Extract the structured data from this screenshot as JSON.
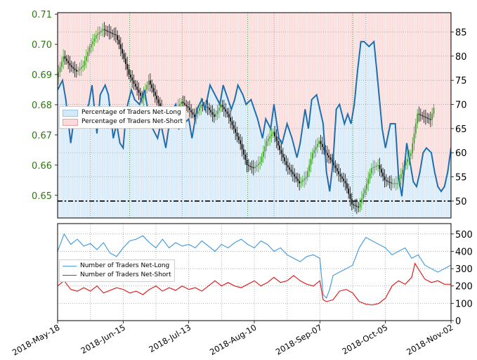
{
  "colors": {
    "price_axis": "#2a7a0a",
    "net_long_fill": "#d6e9f8",
    "net_short_fill": "#fbdada",
    "net_long_line": "#1f6fb0",
    "net_long_count_line": "#4a9fe0",
    "net_short_count_line": "#e02020",
    "candle_up": "#3aa020",
    "candle_down": "#000000",
    "gridline_month": "#2a9a2a",
    "gridline_minor": "#a0a0a0",
    "reference_line": "#000000"
  },
  "chart_data": [
    {
      "type": "candlestick_with_sentiment_overlay",
      "title": "",
      "left_axis": {
        "label": "",
        "ticks": [
          "0.65",
          "0.66",
          "0.67",
          "0.68",
          "0.69",
          "0.70",
          "0.71"
        ],
        "range": [
          0.6425,
          0.7105
        ]
      },
      "right_axis": {
        "label": "",
        "ticks": [
          "50",
          "55",
          "60",
          "65",
          "70",
          "75",
          "80",
          "85"
        ],
        "range": [
          46.5,
          89
        ]
      },
      "reference_line": 50,
      "legend": {
        "placement": "upper-left",
        "entries": [
          "Percentage of Traders Net-Long",
          "Percentage of Traders Net-Short"
        ]
      },
      "price_path": [
        [
          0,
          0.689
        ],
        [
          4,
          0.696
        ],
        [
          8,
          0.693
        ],
        [
          12,
          0.691
        ],
        [
          16,
          0.693
        ],
        [
          20,
          0.699
        ],
        [
          24,
          0.703
        ],
        [
          28,
          0.705
        ],
        [
          32,
          0.704
        ],
        [
          36,
          0.703
        ],
        [
          40,
          0.697
        ],
        [
          44,
          0.69
        ],
        [
          48,
          0.686
        ],
        [
          52,
          0.682
        ],
        [
          56,
          0.688
        ],
        [
          60,
          0.683
        ],
        [
          64,
          0.678
        ],
        [
          68,
          0.674
        ],
        [
          72,
          0.678
        ],
        [
          76,
          0.681
        ],
        [
          80,
          0.679
        ],
        [
          84,
          0.676
        ],
        [
          88,
          0.68
        ],
        [
          92,
          0.679
        ],
        [
          96,
          0.676
        ],
        [
          100,
          0.68
        ],
        [
          104,
          0.677
        ],
        [
          108,
          0.672
        ],
        [
          112,
          0.667
        ],
        [
          116,
          0.66
        ],
        [
          120,
          0.659
        ],
        [
          124,
          0.661
        ],
        [
          128,
          0.668
        ],
        [
          132,
          0.671
        ],
        [
          136,
          0.665
        ],
        [
          140,
          0.66
        ],
        [
          144,
          0.657
        ],
        [
          148,
          0.654
        ],
        [
          152,
          0.656
        ],
        [
          156,
          0.664
        ],
        [
          160,
          0.668
        ],
        [
          164,
          0.664
        ],
        [
          168,
          0.661
        ],
        [
          172,
          0.657
        ],
        [
          176,
          0.654
        ],
        [
          180,
          0.647
        ],
        [
          184,
          0.646
        ],
        [
          188,
          0.652
        ],
        [
          192,
          0.659
        ],
        [
          196,
          0.66
        ],
        [
          200,
          0.655
        ],
        [
          204,
          0.654
        ],
        [
          208,
          0.654
        ],
        [
          212,
          0.66
        ],
        [
          216,
          0.664
        ],
        [
          220,
          0.677
        ],
        [
          224,
          0.676
        ],
        [
          228,
          0.675
        ],
        [
          230,
          0.679
        ]
      ],
      "net_long_pct": [
        [
          0,
          73
        ],
        [
          3,
          75
        ],
        [
          5,
          71
        ],
        [
          8,
          62
        ],
        [
          10,
          67
        ],
        [
          13,
          68
        ],
        [
          16,
          68
        ],
        [
          19,
          70
        ],
        [
          21,
          74
        ],
        [
          24,
          64
        ],
        [
          26,
          72
        ],
        [
          29,
          74
        ],
        [
          31,
          72
        ],
        [
          34,
          63
        ],
        [
          36,
          66
        ],
        [
          38,
          62
        ],
        [
          40,
          61
        ],
        [
          42,
          69
        ],
        [
          45,
          73
        ],
        [
          47,
          71
        ],
        [
          50,
          70
        ],
        [
          53,
          73
        ],
        [
          55,
          69
        ],
        [
          58,
          65
        ],
        [
          61,
          63
        ],
        [
          63,
          66
        ],
        [
          66,
          61
        ],
        [
          69,
          68
        ],
        [
          72,
          70
        ],
        [
          74,
          65
        ],
        [
          77,
          66
        ],
        [
          80,
          67
        ],
        [
          82,
          63
        ],
        [
          85,
          69
        ],
        [
          88,
          71
        ],
        [
          90,
          69
        ],
        [
          93,
          74
        ],
        [
          96,
          72
        ],
        [
          99,
          70
        ],
        [
          101,
          74
        ],
        [
          104,
          71
        ],
        [
          106,
          69
        ],
        [
          108,
          71
        ],
        [
          110,
          74
        ],
        [
          113,
          72
        ],
        [
          115,
          70
        ],
        [
          118,
          71
        ],
        [
          120,
          69
        ],
        [
          122,
          67
        ],
        [
          125,
          63
        ],
        [
          127,
          67
        ],
        [
          130,
          65
        ],
        [
          132,
          70
        ],
        [
          135,
          63
        ],
        [
          137,
          62
        ],
        [
          140,
          66
        ],
        [
          143,
          63
        ],
        [
          146,
          59
        ],
        [
          148,
          62
        ],
        [
          151,
          69
        ],
        [
          153,
          65
        ],
        [
          155,
          71
        ],
        [
          158,
          72
        ],
        [
          160,
          69
        ],
        [
          162,
          66
        ],
        [
          164,
          56
        ],
        [
          166,
          52
        ],
        [
          168,
          58
        ],
        [
          170,
          69
        ],
        [
          172,
          70
        ],
        [
          175,
          66
        ],
        [
          177,
          68
        ],
        [
          179,
          66
        ],
        [
          181,
          70
        ],
        [
          183,
          77
        ],
        [
          185,
          83
        ],
        [
          187,
          83
        ],
        [
          190,
          82
        ],
        [
          193,
          83
        ],
        [
          195,
          76
        ],
        [
          198,
          65
        ],
        [
          200,
          61
        ],
        [
          203,
          66
        ],
        [
          206,
          66
        ],
        [
          208,
          55
        ],
        [
          210,
          51
        ],
        [
          213,
          62
        ],
        [
          215,
          58
        ],
        [
          217,
          54
        ],
        [
          219,
          53
        ],
        [
          221,
          56
        ],
        [
          223,
          60
        ],
        [
          225,
          61
        ],
        [
          228,
          60
        ],
        [
          230,
          56
        ],
        [
          232,
          53
        ],
        [
          234,
          52
        ],
        [
          236,
          53
        ],
        [
          238,
          56
        ],
        [
          240,
          61
        ]
      ]
    },
    {
      "type": "line",
      "title": "",
      "right_axis": {
        "label": "",
        "ticks": [
          "0",
          "100",
          "200",
          "300",
          "400",
          "500"
        ],
        "range": [
          0,
          560
        ]
      },
      "legend": {
        "placement": "upper-left",
        "entries": [
          "Number of Traders Net-Long",
          "Number of Traders Net-Short"
        ]
      },
      "x_tick_labels": [
        "2018-May-18",
        "2018-Jun-15",
        "2018-Jul-13",
        "2018-Aug-10",
        "2018-Sep-07",
        "2018-Oct-05",
        "2018-Nov-02"
      ],
      "series": [
        {
          "name": "Number of Traders Net-Long",
          "points": [
            [
              0,
              400
            ],
            [
              4,
              500
            ],
            [
              8,
              440
            ],
            [
              12,
              470
            ],
            [
              16,
              430
            ],
            [
              20,
              445
            ],
            [
              24,
              410
            ],
            [
              28,
              450
            ],
            [
              32,
              390
            ],
            [
              36,
              370
            ],
            [
              40,
              420
            ],
            [
              44,
              460
            ],
            [
              48,
              470
            ],
            [
              52,
              490
            ],
            [
              56,
              450
            ],
            [
              60,
              420
            ],
            [
              64,
              470
            ],
            [
              68,
              420
            ],
            [
              72,
              450
            ],
            [
              76,
              430
            ],
            [
              80,
              440
            ],
            [
              84,
              420
            ],
            [
              88,
              460
            ],
            [
              92,
              430
            ],
            [
              96,
              400
            ],
            [
              100,
              440
            ],
            [
              104,
              420
            ],
            [
              108,
              450
            ],
            [
              112,
              470
            ],
            [
              116,
              440
            ],
            [
              120,
              420
            ],
            [
              124,
              460
            ],
            [
              128,
              440
            ],
            [
              132,
              400
            ],
            [
              136,
              420
            ],
            [
              140,
              380
            ],
            [
              144,
              360
            ],
            [
              148,
              340
            ],
            [
              152,
              370
            ],
            [
              156,
              380
            ],
            [
              160,
              360
            ],
            [
              162,
              150
            ],
            [
              164,
              130
            ],
            [
              166,
              180
            ],
            [
              168,
              260
            ],
            [
              172,
              280
            ],
            [
              176,
              300
            ],
            [
              180,
              320
            ],
            [
              184,
              420
            ],
            [
              188,
              480
            ],
            [
              192,
              460
            ],
            [
              196,
              440
            ],
            [
              200,
              420
            ],
            [
              204,
              380
            ],
            [
              208,
              400
            ],
            [
              212,
              420
            ],
            [
              216,
              360
            ],
            [
              220,
              380
            ],
            [
              224,
              320
            ],
            [
              228,
              300
            ],
            [
              232,
              280
            ],
            [
              236,
              300
            ],
            [
              240,
              320
            ]
          ]
        },
        {
          "name": "Number of Traders Net-Short",
          "points": [
            [
              0,
              200
            ],
            [
              4,
              230
            ],
            [
              8,
              180
            ],
            [
              12,
              170
            ],
            [
              16,
              190
            ],
            [
              20,
              170
            ],
            [
              24,
              200
            ],
            [
              28,
              160
            ],
            [
              32,
              175
            ],
            [
              36,
              190
            ],
            [
              40,
              180
            ],
            [
              44,
              160
            ],
            [
              48,
              170
            ],
            [
              52,
              150
            ],
            [
              56,
              180
            ],
            [
              60,
              200
            ],
            [
              64,
              170
            ],
            [
              68,
              190
            ],
            [
              72,
              175
            ],
            [
              76,
              200
            ],
            [
              80,
              180
            ],
            [
              84,
              190
            ],
            [
              88,
              170
            ],
            [
              92,
              200
            ],
            [
              96,
              230
            ],
            [
              100,
              200
            ],
            [
              104,
              220
            ],
            [
              108,
              200
            ],
            [
              112,
              190
            ],
            [
              116,
              210
            ],
            [
              120,
              230
            ],
            [
              124,
              200
            ],
            [
              128,
              220
            ],
            [
              132,
              250
            ],
            [
              136,
              220
            ],
            [
              140,
              230
            ],
            [
              144,
              260
            ],
            [
              148,
              230
            ],
            [
              152,
              210
            ],
            [
              156,
              200
            ],
            [
              160,
              230
            ],
            [
              162,
              120
            ],
            [
              164,
              110
            ],
            [
              168,
              120
            ],
            [
              172,
              170
            ],
            [
              176,
              180
            ],
            [
              180,
              160
            ],
            [
              184,
              110
            ],
            [
              188,
              95
            ],
            [
              192,
              90
            ],
            [
              196,
              100
            ],
            [
              200,
              130
            ],
            [
              204,
              200
            ],
            [
              208,
              230
            ],
            [
              212,
              210
            ],
            [
              216,
              250
            ],
            [
              218,
              330
            ],
            [
              220,
              300
            ],
            [
              224,
              240
            ],
            [
              228,
              220
            ],
            [
              232,
              230
            ],
            [
              236,
              210
            ],
            [
              240,
              210
            ]
          ]
        }
      ]
    }
  ]
}
